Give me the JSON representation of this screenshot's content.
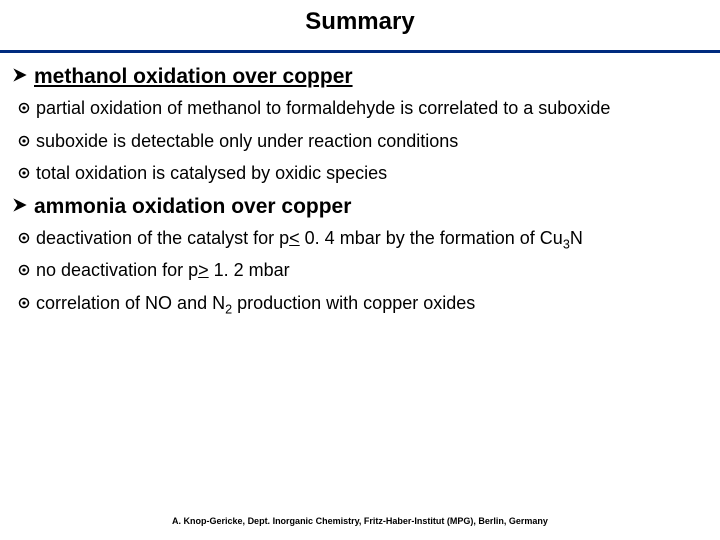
{
  "title": "Summary",
  "rule_color": "#002b7f",
  "background_color": "#ffffff",
  "text_color": "#000000",
  "title_fontsize": 24,
  "heading_fontsize": 21,
  "body_fontsize": 18,
  "footer_fontsize": 9,
  "sections": [
    {
      "heading": "methanol oxidation over copper",
      "underlined": true,
      "bullets": [
        {
          "text": "partial oxidation of methanol to formaldehyde is correlated to a suboxide"
        },
        {
          "text": "suboxide is detectable only under reaction conditions"
        },
        {
          "text": "total oxidation is catalysed by oxidic species"
        }
      ]
    },
    {
      "heading": "ammonia oxidation over copper",
      "underlined": false,
      "bullets": [
        {
          "parts": [
            {
              "t": "deactivation of the catalyst for p"
            },
            {
              "t": "<",
              "ul": true
            },
            {
              "t": " 0. 4 mbar by the formation of Cu"
            },
            {
              "t": "3",
              "sub": true
            },
            {
              "t": "N"
            }
          ]
        },
        {
          "parts": [
            {
              "t": "no deactivation for p"
            },
            {
              "t": ">",
              "ul": true
            },
            {
              "t": " 1. 2 mbar"
            }
          ]
        },
        {
          "parts": [
            {
              "t": "correlation of NO and N"
            },
            {
              "t": "2",
              "sub": true
            },
            {
              "t": " production with copper oxides"
            }
          ]
        }
      ]
    }
  ],
  "footer": "A. Knop-Gericke, Dept. Inorganic Chemistry, Fritz-Haber-Institut (MPG), Berlin, Germany",
  "icons": {
    "arrow_fill": "#000000",
    "odot_stroke": "#000000"
  }
}
